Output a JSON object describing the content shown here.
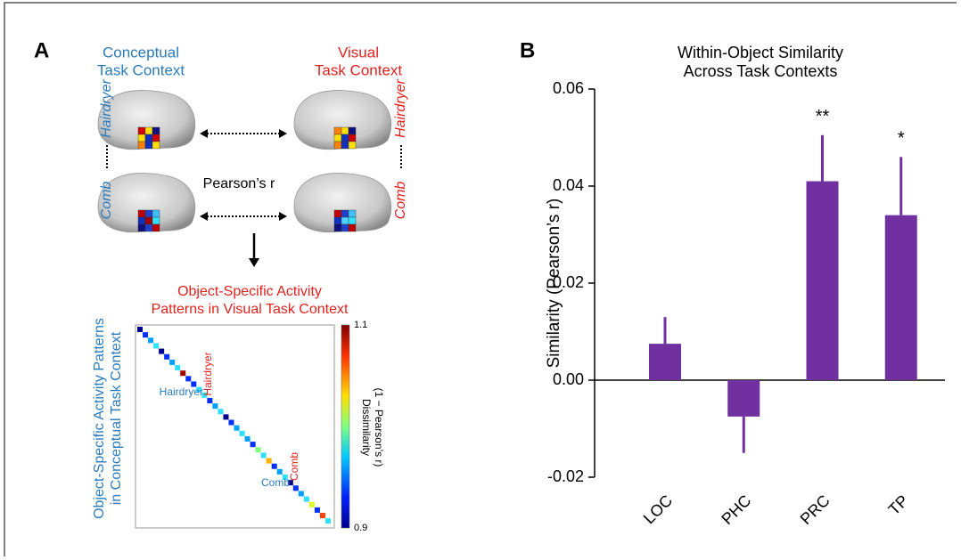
{
  "panel_a": {
    "label": "A",
    "conceptual_title": [
      "Conceptual",
      "Task Context"
    ],
    "visual_title": [
      "Visual",
      "Task Context"
    ],
    "left_object_top": "Hairdryer",
    "left_object_bottom": "Comb",
    "right_object_top": "Hairdryer",
    "right_object_bottom": "Comb",
    "pearson_label": "Pearson’s r",
    "matrix_title": [
      "Object-Specific Activity",
      "Patterns in Visual Task Context"
    ],
    "matrix_side_title": [
      "Object-Specific Activity Patterns",
      "in Conceptual Task Context"
    ],
    "matrix_row_label_1": "Hairdryer",
    "matrix_col_label_1": "Hairdryer",
    "matrix_row_label_2": "Comb",
    "matrix_col_label_2": "Comb",
    "colorbar_title": [
      "Dissimilarity",
      "(1 − Pearson’s r)"
    ],
    "colorbar_ticks": [
      0.9,
      1.1
    ]
  },
  "chart_data": {
    "type": "bar",
    "panel_label": "B",
    "title": [
      "Within-Object Similarity",
      "Across Task Contexts"
    ],
    "y_label": "Similarity (Pearson’s r)",
    "categories": [
      "LOC",
      "PHC",
      "PRC",
      "TP"
    ],
    "values": [
      0.0075,
      -0.0075,
      0.041,
      0.034
    ],
    "errors": [
      0.0055,
      0.0075,
      0.0095,
      0.012
    ],
    "significance": [
      null,
      null,
      "**",
      "*"
    ],
    "color": "#7030a0",
    "ylim": [
      -0.02,
      0.06
    ],
    "yticks": [
      -0.02,
      {
        "value": 0,
        "label": "0.00"
      },
      0.02,
      0.04,
      0.06
    ]
  }
}
